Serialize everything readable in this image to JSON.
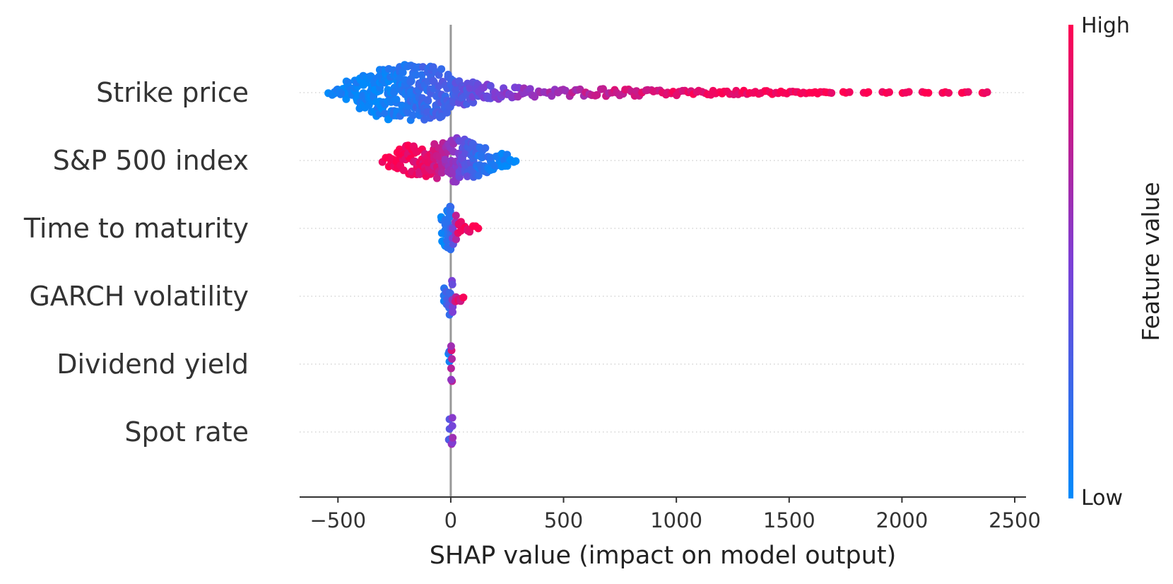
{
  "chart_data": {
    "type": "scatter",
    "subtype": "shap-beeswarm",
    "title": "",
    "xlabel": "SHAP value (impact on model output)",
    "xlim": [
      -670,
      2550
    ],
    "xticks": [
      -500,
      0,
      500,
      1000,
      1500,
      2000,
      2500
    ],
    "xtick_labels": [
      "−500",
      "0",
      "500",
      "1000",
      "1500",
      "2000",
      "2500"
    ],
    "zero_line": 0,
    "colorbar": {
      "title": "Feature value",
      "high_label": "High",
      "low_label": "Low",
      "low_color": "#008bfb",
      "mid_color": "#7c3fd6",
      "high_color": "#ff0051"
    },
    "features": [
      {
        "name": "Strike price",
        "shap_min": -540,
        "shap_max": 2410,
        "spread": [
          [
            -540,
            0.05
          ],
          [
            -480,
            0.35
          ],
          [
            -380,
            0.7
          ],
          [
            -280,
            0.95
          ],
          [
            -200,
            1.0
          ],
          [
            -100,
            0.95
          ],
          [
            -30,
            0.85
          ],
          [
            20,
            0.5
          ],
          [
            80,
            0.4
          ],
          [
            150,
            0.3
          ],
          [
            250,
            0.2
          ],
          [
            350,
            0.16
          ],
          [
            500,
            0.15
          ],
          [
            700,
            0.13
          ],
          [
            900,
            0.11
          ],
          [
            1100,
            0.09
          ],
          [
            1300,
            0.07
          ],
          [
            1500,
            0.05
          ],
          [
            1650,
            0.03
          ],
          [
            2410,
            0.02
          ]
        ],
        "color_points": [
          [
            -540,
            0.05
          ],
          [
            -300,
            0.05
          ],
          [
            -150,
            0.18
          ],
          [
            0,
            0.3
          ],
          [
            200,
            0.48
          ],
          [
            400,
            0.62
          ],
          [
            700,
            0.78
          ],
          [
            1000,
            0.9
          ],
          [
            1400,
            0.97
          ],
          [
            2410,
            1.0
          ]
        ],
        "color_jitter": 0.08,
        "gaps_from": 1700
      },
      {
        "name": "S&P 500 index",
        "shap_min": -300,
        "shap_max": 290,
        "spread": [
          [
            -300,
            0.1
          ],
          [
            -250,
            0.35
          ],
          [
            -200,
            0.55
          ],
          [
            -100,
            0.6
          ],
          [
            -20,
            0.7
          ],
          [
            30,
            0.85
          ],
          [
            80,
            0.7
          ],
          [
            150,
            0.5
          ],
          [
            220,
            0.3
          ],
          [
            290,
            0.1
          ]
        ],
        "color_points": [
          [
            -300,
            1.0
          ],
          [
            -180,
            0.95
          ],
          [
            -80,
            0.85
          ],
          [
            0,
            0.6
          ],
          [
            60,
            0.4
          ],
          [
            120,
            0.2
          ],
          [
            200,
            0.08
          ],
          [
            290,
            0.02
          ]
        ],
        "color_jitter": 0.08
      },
      {
        "name": "Time to maturity",
        "shap_min": -40,
        "shap_max": 135,
        "spread": [
          [
            -40,
            0.5
          ],
          [
            -20,
            0.8
          ],
          [
            0,
            0.9
          ],
          [
            20,
            0.5
          ],
          [
            40,
            0.3
          ],
          [
            80,
            0.2
          ],
          [
            135,
            0.1
          ]
        ],
        "color_points": [
          [
            -40,
            0.05
          ],
          [
            -10,
            0.1
          ],
          [
            10,
            0.4
          ],
          [
            30,
            0.85
          ],
          [
            135,
            1.0
          ]
        ],
        "color_jitter": 0.1
      },
      {
        "name": "GARCH volatility",
        "shap_min": -30,
        "shap_max": 70,
        "spread": [
          [
            -30,
            0.3
          ],
          [
            -10,
            0.6
          ],
          [
            0,
            0.8
          ],
          [
            15,
            0.4
          ],
          [
            40,
            0.2
          ],
          [
            70,
            0.1
          ]
        ],
        "color_points": [
          [
            -30,
            0.1
          ],
          [
            0,
            0.3
          ],
          [
            20,
            0.8
          ],
          [
            70,
            1.0
          ]
        ],
        "color_jitter": 0.1
      },
      {
        "name": "Dividend yield",
        "shap_min": -8,
        "shap_max": 12,
        "spread": [
          [
            -8,
            0.5
          ],
          [
            0,
            0.8
          ],
          [
            12,
            0.5
          ]
        ],
        "color_points": [
          [
            -8,
            0.15
          ],
          [
            0,
            0.6
          ],
          [
            12,
            0.95
          ]
        ],
        "color_jitter": 0.15
      },
      {
        "name": "Spot rate",
        "shap_min": -6,
        "shap_max": 8,
        "spread": [
          [
            -6,
            0.5
          ],
          [
            0,
            0.7
          ],
          [
            8,
            0.5
          ]
        ],
        "color_points": [
          [
            -6,
            0.35
          ],
          [
            0,
            0.45
          ],
          [
            8,
            0.55
          ]
        ],
        "color_jitter": 0.1
      }
    ]
  }
}
